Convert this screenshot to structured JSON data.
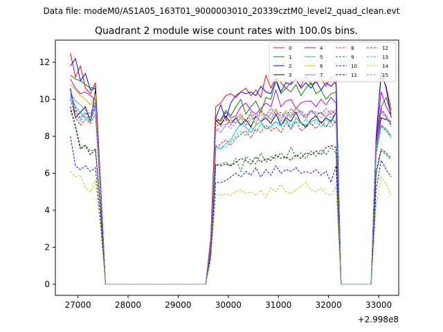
{
  "suptitle": "Data file: modeM0/AS1A05_163T01_9000003010_20339cztM0_level2_quad_clean.evt",
  "chart_data": {
    "type": "line",
    "title": "Quadrant 2 module wise count rates with 100.0s bins.",
    "xlabel": "",
    "ylabel": "",
    "x_offset_label": "+2.998e8",
    "xlim": [
      26550,
      33400
    ],
    "ylim": [
      -0.6,
      13.2
    ],
    "xticks": [
      27000,
      28000,
      29000,
      30000,
      31000,
      32000,
      33000
    ],
    "yticks": [
      0,
      2,
      4,
      6,
      8,
      10,
      12
    ],
    "legend_position": "upper right",
    "grid": false,
    "x": [
      26850,
      26950,
      27050,
      27150,
      27250,
      27350,
      27450,
      27550,
      27650,
      27750,
      27850,
      27950,
      28050,
      28150,
      28250,
      28350,
      28450,
      28550,
      28650,
      28750,
      28850,
      28950,
      29050,
      29150,
      29250,
      29350,
      29450,
      29550,
      29650,
      29750,
      29850,
      29950,
      30050,
      30150,
      30250,
      30350,
      30450,
      30550,
      30650,
      30750,
      30850,
      30950,
      31050,
      31150,
      31250,
      31350,
      31450,
      31550,
      31650,
      31750,
      31850,
      31950,
      32050,
      32150,
      32250,
      32350,
      32450,
      32550,
      32650,
      32750,
      32850,
      32950,
      33050,
      33150,
      33250
    ],
    "series": [
      {
        "name": "0",
        "color": "#ff0000",
        "dash": false,
        "values": [
          12.5,
          11.2,
          11.8,
          10.6,
          10.3,
          10.9,
          5.5,
          0,
          0,
          0,
          0,
          0,
          0,
          0,
          0,
          0,
          0,
          0,
          0,
          0,
          0,
          0,
          0,
          0,
          0,
          0,
          0,
          0,
          2.5,
          9.6,
          9.8,
          10.2,
          10.3,
          10.1,
          10.4,
          10.6,
          10.2,
          10.5,
          10.1,
          11.3,
          10.6,
          11.2,
          10.9,
          10.6,
          10.9,
          11.0,
          10.7,
          11.3,
          10.8,
          10.9,
          11.1,
          10.7,
          11.2,
          10.8,
          0,
          0,
          0,
          0,
          0,
          0,
          0,
          8.0,
          11.3,
          10.7,
          9.4
        ]
      },
      {
        "name": "1",
        "color": "#008000",
        "dash": false,
        "values": [
          11.3,
          11.1,
          11.0,
          10.8,
          10.6,
          10.7,
          5.4,
          0,
          0,
          0,
          0,
          0,
          0,
          0,
          0,
          0,
          0,
          0,
          0,
          0,
          0,
          0,
          0,
          0,
          0,
          0,
          0,
          0,
          2.3,
          8.8,
          8.9,
          9.4,
          9.1,
          9.6,
          10.0,
          9.2,
          9.6,
          9.9,
          9.3,
          10.1,
          10.0,
          11.0,
          10.3,
          10.6,
          10.4,
          10.8,
          10.2,
          10.6,
          10.9,
          10.3,
          10.5,
          10.0,
          10.3,
          10.4,
          0,
          0,
          0,
          0,
          0,
          0,
          0,
          7.8,
          9.6,
          10.1,
          9.2
        ]
      },
      {
        "name": "2",
        "color": "#0000ff",
        "dash": false,
        "values": [
          11.8,
          12.2,
          11.0,
          11.4,
          10.5,
          10.6,
          5.6,
          0,
          0,
          0,
          0,
          0,
          0,
          0,
          0,
          0,
          0,
          0,
          0,
          0,
          0,
          0,
          0,
          0,
          0,
          0,
          0,
          0,
          2.4,
          9.0,
          9.7,
          8.9,
          9.8,
          10.2,
          10.4,
          10.3,
          10.4,
          10.2,
          10.7,
          10.4,
          10.3,
          11.1,
          10.4,
          10.9,
          10.8,
          11.1,
          10.6,
          10.9,
          10.6,
          11.0,
          10.5,
          10.9,
          10.7,
          11.0,
          0,
          0,
          0,
          0,
          0,
          0,
          0,
          7.9,
          11.5,
          10.6,
          9.0
        ]
      },
      {
        "name": "3",
        "color": "#000000",
        "dash": false,
        "values": [
          10.6,
          9.0,
          9.3,
          9.6,
          8.8,
          10.5,
          5.2,
          0,
          0,
          0,
          0,
          0,
          0,
          0,
          0,
          0,
          0,
          0,
          0,
          0,
          0,
          0,
          0,
          0,
          0,
          0,
          0,
          0,
          2.1,
          8.9,
          8.6,
          9.1,
          8.7,
          9.0,
          8.6,
          8.9,
          8.5,
          9.1,
          8.8,
          9.0,
          8.7,
          9.2,
          8.6,
          9.0,
          8.8,
          9.3,
          8.7,
          8.5,
          8.9,
          9.1,
          8.7,
          9.0,
          8.8,
          9.3,
          0,
          0,
          0,
          0,
          0,
          0,
          0,
          7.4,
          9.0,
          8.9,
          8.8
        ]
      },
      {
        "name": "4",
        "color": "#bf00bf",
        "dash": false,
        "values": [
          11.1,
          10.6,
          10.3,
          10.4,
          10.2,
          10.0,
          5.3,
          0,
          0,
          0,
          0,
          0,
          0,
          0,
          0,
          0,
          0,
          0,
          0,
          0,
          0,
          0,
          0,
          0,
          0,
          0,
          0,
          0,
          2.2,
          9.0,
          8.8,
          9.3,
          9.0,
          9.1,
          9.6,
          9.8,
          9.4,
          9.2,
          9.5,
          9.8,
          9.6,
          10.5,
          9.6,
          9.9,
          10.0,
          9.5,
          9.8,
          9.9,
          9.9,
          9.6,
          10.0,
          9.7,
          10.1,
          9.8,
          0,
          0,
          0,
          0,
          0,
          0,
          0,
          7.7,
          10.4,
          9.6,
          9.1
        ]
      },
      {
        "name": "5",
        "color": "#00bfbf",
        "dash": false,
        "values": [
          10.2,
          9.6,
          9.3,
          9.0,
          8.8,
          9.7,
          5.0,
          0,
          0,
          0,
          0,
          0,
          0,
          0,
          0,
          0,
          0,
          0,
          0,
          0,
          0,
          0,
          0,
          0,
          0,
          0,
          0,
          0,
          2.0,
          7.5,
          7.3,
          7.6,
          7.8,
          8.3,
          8.7,
          8.5,
          8.2,
          8.6,
          8.8,
          8.4,
          8.5,
          8.8,
          8.6,
          8.9,
          8.4,
          9.0,
          8.7,
          8.6,
          8.8,
          8.9,
          8.7,
          8.5,
          8.9,
          8.8,
          0,
          0,
          0,
          0,
          0,
          0,
          0,
          7.2,
          8.6,
          8.4,
          8.0
        ]
      },
      {
        "name": "6",
        "color": "#bfbf00",
        "dash": false,
        "values": [
          10.8,
          10.5,
          10.2,
          10.0,
          9.7,
          10.3,
          5.3,
          0,
          0,
          0,
          0,
          0,
          0,
          0,
          0,
          0,
          0,
          0,
          0,
          0,
          0,
          0,
          0,
          0,
          0,
          0,
          0,
          0,
          2.2,
          8.6,
          8.8,
          9.0,
          8.7,
          8.9,
          9.1,
          8.8,
          9.2,
          8.6,
          9.4,
          8.9,
          9.2,
          9.5,
          9.0,
          9.4,
          9.1,
          9.6,
          9.3,
          9.0,
          9.4,
          9.2,
          9.3,
          9.1,
          9.2,
          9.5,
          0,
          0,
          0,
          0,
          0,
          0,
          0,
          7.5,
          9.3,
          9.0,
          8.6
        ]
      },
      {
        "name": "7",
        "color": "#8080ff",
        "dash": false,
        "values": [
          10.4,
          9.9,
          9.7,
          9.4,
          9.2,
          9.9,
          5.1,
          0,
          0,
          0,
          0,
          0,
          0,
          0,
          0,
          0,
          0,
          0,
          0,
          0,
          0,
          0,
          0,
          0,
          0,
          0,
          0,
          0,
          2.1,
          8.4,
          8.2,
          8.6,
          8.9,
          8.7,
          9.0,
          8.6,
          8.9,
          9.1,
          8.8,
          9.2,
          8.9,
          9.4,
          8.8,
          9.3,
          9.0,
          9.5,
          9.2,
          9.0,
          9.4,
          9.1,
          9.3,
          9.0,
          9.4,
          9.2,
          0,
          0,
          0,
          0,
          0,
          0,
          0,
          7.5,
          9.4,
          9.1,
          8.7
        ]
      },
      {
        "name": "8",
        "color": "#ff0000",
        "dash": true,
        "values": [
          10.0,
          9.0,
          8.6,
          8.9,
          8.7,
          9.2,
          4.9,
          0,
          0,
          0,
          0,
          0,
          0,
          0,
          0,
          0,
          0,
          0,
          0,
          0,
          0,
          0,
          0,
          0,
          0,
          0,
          0,
          0,
          2.0,
          7.4,
          7.6,
          7.8,
          7.5,
          7.9,
          8.1,
          8.3,
          7.9,
          8.4,
          8.2,
          8.6,
          8.3,
          8.5,
          8.2,
          8.7,
          8.4,
          8.8,
          8.3,
          8.5,
          8.7,
          8.4,
          8.8,
          8.6,
          8.5,
          8.8,
          0,
          0,
          0,
          0,
          0,
          0,
          0,
          7.0,
          8.6,
          8.3,
          8.0
        ]
      },
      {
        "name": "9",
        "color": "#008000",
        "dash": true,
        "values": [
          9.4,
          8.6,
          7.4,
          7.5,
          7.2,
          7.3,
          4.2,
          0,
          0,
          0,
          0,
          0,
          0,
          0,
          0,
          0,
          0,
          0,
          0,
          0,
          0,
          0,
          0,
          0,
          0,
          0,
          0,
          0,
          1.7,
          6.4,
          6.5,
          6.6,
          6.4,
          6.8,
          6.1,
          6.9,
          6.7,
          6.5,
          7.1,
          6.6,
          6.9,
          6.8,
          7.1,
          6.8,
          7.4,
          6.9,
          7.1,
          6.8,
          7.2,
          6.9,
          7.3,
          7.0,
          7.4,
          7.1,
          0,
          0,
          0,
          0,
          0,
          0,
          0,
          6.0,
          7.2,
          7.0,
          6.7
        ]
      },
      {
        "name": "10",
        "color": "#0000ff",
        "dash": true,
        "values": [
          8.0,
          6.4,
          6.2,
          6.4,
          6.1,
          6.3,
          3.5,
          0,
          0,
          0,
          0,
          0,
          0,
          0,
          0,
          0,
          0,
          0,
          0,
          0,
          0,
          0,
          0,
          0,
          0,
          0,
          0,
          0,
          1.5,
          5.5,
          5.5,
          5.6,
          5.8,
          6.0,
          5.8,
          6.1,
          5.9,
          6.3,
          5.8,
          6.2,
          5.9,
          6.4,
          6.0,
          6.2,
          6.1,
          6.3,
          6.0,
          6.1,
          6.0,
          6.2,
          5.9,
          6.1,
          5.5,
          6.4,
          0,
          0,
          0,
          0,
          0,
          0,
          0,
          5.1,
          6.7,
          6.2,
          5.8
        ]
      },
      {
        "name": "11",
        "color": "#000000",
        "dash": true,
        "values": [
          9.6,
          8.5,
          7.3,
          7.5,
          7.0,
          7.3,
          4.1,
          0,
          0,
          0,
          0,
          0,
          0,
          0,
          0,
          0,
          0,
          0,
          0,
          0,
          0,
          0,
          0,
          0,
          0,
          0,
          0,
          0,
          1.7,
          6.5,
          6.4,
          6.5,
          6.4,
          6.6,
          6.8,
          6.7,
          6.5,
          6.9,
          6.6,
          6.8,
          6.7,
          7.0,
          6.8,
          6.9,
          6.7,
          7.0,
          6.8,
          7.1,
          7.0,
          7.2,
          7.0,
          7.4,
          7.5,
          7.4,
          0,
          0,
          0,
          0,
          0,
          0,
          0,
          6.1,
          7.3,
          7.1,
          6.8
        ]
      },
      {
        "name": "12",
        "color": "#bf00bf",
        "dash": true,
        "values": [
          10.5,
          9.5,
          9.0,
          9.3,
          9.0,
          9.8,
          5.1,
          0,
          0,
          0,
          0,
          0,
          0,
          0,
          0,
          0,
          0,
          0,
          0,
          0,
          0,
          0,
          0,
          0,
          0,
          0,
          0,
          0,
          2.1,
          8.5,
          8.7,
          8.9,
          8.6,
          9.0,
          9.2,
          8.8,
          9.3,
          9.0,
          9.4,
          9.1,
          9.5,
          9.2,
          9.3,
          9.0,
          9.5,
          9.2,
          9.4,
          9.1,
          9.4,
          9.3,
          9.2,
          9.5,
          9.2,
          9.4,
          0,
          0,
          0,
          0,
          0,
          0,
          0,
          7.6,
          9.5,
          9.1,
          8.6
        ]
      },
      {
        "name": "13",
        "color": "#00bfbf",
        "dash": true,
        "values": [
          10.3,
          9.4,
          8.9,
          9.2,
          8.9,
          9.6,
          5.0,
          0,
          0,
          0,
          0,
          0,
          0,
          0,
          0,
          0,
          0,
          0,
          0,
          0,
          0,
          0,
          0,
          0,
          0,
          0,
          0,
          0,
          2.0,
          7.2,
          7.5,
          7.4,
          7.7,
          8.0,
          8.3,
          8.0,
          8.5,
          8.2,
          8.7,
          8.4,
          8.6,
          8.8,
          8.5,
          8.9,
          8.6,
          8.8,
          8.7,
          8.9,
          8.6,
          8.8,
          8.5,
          8.9,
          8.7,
          8.8,
          0,
          0,
          0,
          0,
          0,
          0,
          0,
          7.1,
          8.5,
          8.3,
          7.9
        ]
      },
      {
        "name": "14",
        "color": "#bfbf00",
        "dash": true,
        "values": [
          6.1,
          5.8,
          5.9,
          5.2,
          5.0,
          5.6,
          3.0,
          0,
          0,
          0,
          0,
          0,
          0,
          0,
          0,
          0,
          0,
          0,
          0,
          0,
          0,
          0,
          0,
          0,
          0,
          0,
          0,
          0,
          1.3,
          4.9,
          4.8,
          4.9,
          4.8,
          5.0,
          5.1,
          4.9,
          5.0,
          4.8,
          5.1,
          4.7,
          5.2,
          5.0,
          5.4,
          5.0,
          4.9,
          5.1,
          5.3,
          5.5,
          5.1,
          5.0,
          5.2,
          4.9,
          4.8,
          5.3,
          0,
          0,
          0,
          0,
          0,
          0,
          0,
          4.2,
          5.8,
          5.4,
          4.8
        ]
      },
      {
        "name": "15",
        "color": "#8080ff",
        "dash": true,
        "values": [
          10.1,
          9.3,
          8.8,
          9.1,
          8.8,
          9.5,
          4.9,
          0,
          0,
          0,
          0,
          0,
          0,
          0,
          0,
          0,
          0,
          0,
          0,
          0,
          0,
          0,
          0,
          0,
          0,
          0,
          0,
          0,
          2.0,
          8.3,
          8.5,
          8.7,
          8.4,
          8.8,
          9.0,
          8.6,
          9.1,
          8.8,
          9.2,
          8.9,
          9.3,
          9.0,
          9.2,
          8.9,
          9.3,
          9.0,
          9.2,
          8.9,
          9.3,
          9.1,
          9.0,
          9.3,
          9.0,
          9.2,
          0,
          0,
          0,
          0,
          0,
          0,
          0,
          7.4,
          9.3,
          9.0,
          8.5
        ]
      }
    ]
  }
}
